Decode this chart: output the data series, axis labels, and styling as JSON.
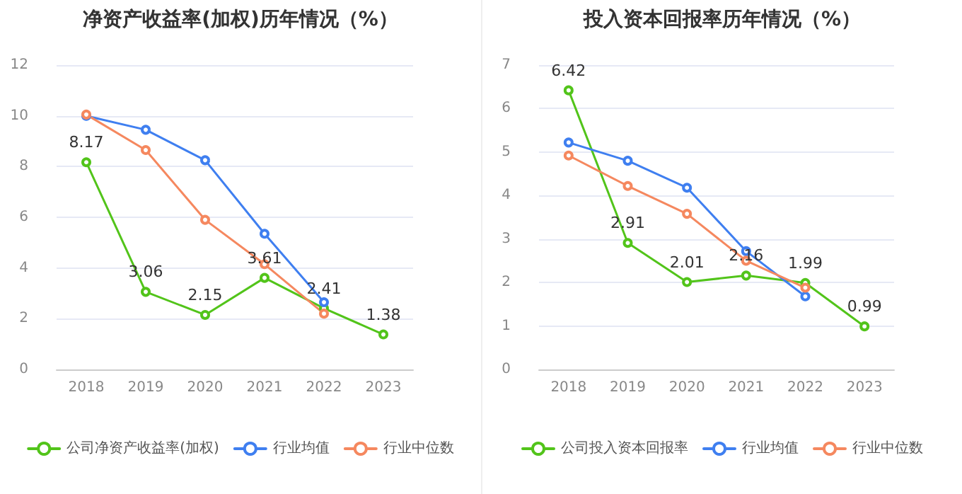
{
  "chart_data": [
    {
      "type": "line",
      "title": "净资产收益率(加权)历年情况（%）",
      "categories": [
        "2018",
        "2019",
        "2020",
        "2021",
        "2022",
        "2023"
      ],
      "ylim": [
        0,
        12
      ],
      "yticks": [
        0,
        2,
        4,
        6,
        8,
        10,
        12
      ],
      "grid": "y",
      "legend": "bottom",
      "marker": "circle",
      "line_style": "solid",
      "series": [
        {
          "name": "公司净资产收益率(加权)",
          "color": "#52c41a",
          "values": [
            8.17,
            3.06,
            2.15,
            3.61,
            2.41,
            1.38
          ],
          "value_labels": [
            "8.17",
            "3.06",
            "2.15",
            "3.61",
            "2.41",
            "1.38"
          ]
        },
        {
          "name": "行业均值",
          "color": "#3f7ff0",
          "values": [
            10.0,
            9.45,
            8.25,
            5.35,
            2.65,
            null
          ]
        },
        {
          "name": "行业中位数",
          "color": "#f5885f",
          "values": [
            10.05,
            8.65,
            5.9,
            4.15,
            2.2,
            null
          ]
        }
      ]
    },
    {
      "type": "line",
      "title": "投入资本回报率历年情况（%）",
      "categories": [
        "2018",
        "2019",
        "2020",
        "2021",
        "2022",
        "2023"
      ],
      "ylim": [
        0,
        7
      ],
      "yticks": [
        0,
        1,
        2,
        3,
        4,
        5,
        6,
        7
      ],
      "grid": "y",
      "legend": "bottom",
      "marker": "circle",
      "line_style": "solid",
      "series": [
        {
          "name": "公司投入资本回报率",
          "color": "#52c41a",
          "values": [
            6.42,
            2.91,
            2.01,
            2.16,
            1.99,
            0.99
          ],
          "value_labels": [
            "6.42",
            "2.91",
            "2.01",
            "2.16",
            "1.99",
            "0.99"
          ]
        },
        {
          "name": "行业均值",
          "color": "#3f7ff0",
          "values": [
            5.22,
            4.8,
            4.18,
            2.72,
            1.68,
            null
          ]
        },
        {
          "name": "行业中位数",
          "color": "#f5885f",
          "values": [
            4.92,
            4.22,
            3.58,
            2.5,
            1.88,
            null
          ]
        }
      ]
    }
  ]
}
